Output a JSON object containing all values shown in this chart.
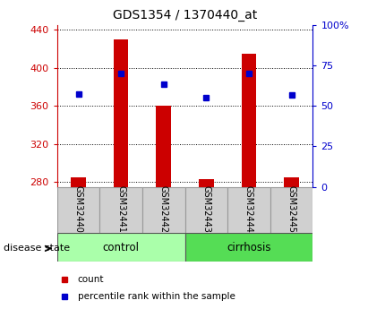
{
  "title": "GDS1354 / 1370440_at",
  "samples": [
    "GSM32440",
    "GSM32441",
    "GSM32442",
    "GSM32443",
    "GSM32444",
    "GSM32445"
  ],
  "groups": [
    "control",
    "control",
    "control",
    "cirrhosis",
    "cirrhosis",
    "cirrhosis"
  ],
  "red_values": [
    285,
    430,
    360,
    283,
    415,
    285
  ],
  "blue_values": [
    372,
    394,
    383,
    369,
    394,
    371
  ],
  "ylim_left": [
    275,
    445
  ],
  "yticks_left": [
    280,
    320,
    360,
    400,
    440
  ],
  "ylim_right": [
    0,
    100
  ],
  "yticks_right": [
    0,
    25,
    50,
    75,
    100
  ],
  "ytick_labels_right": [
    "0",
    "25",
    "50",
    "75",
    "100%"
  ],
  "red_color": "#cc0000",
  "blue_color": "#0000cc",
  "bar_width": 0.35,
  "background_color": "#ffffff",
  "plot_bg_color": "#ffffff",
  "control_color": "#aaffaa",
  "cirrhosis_color": "#55dd55",
  "box_color": "#d0d0d0",
  "left_axis_color": "#cc0000",
  "right_axis_color": "#0000cc",
  "disease_state_label": "disease state",
  "legend_count_label": "count",
  "legend_percentile_label": "percentile rank within the sample"
}
